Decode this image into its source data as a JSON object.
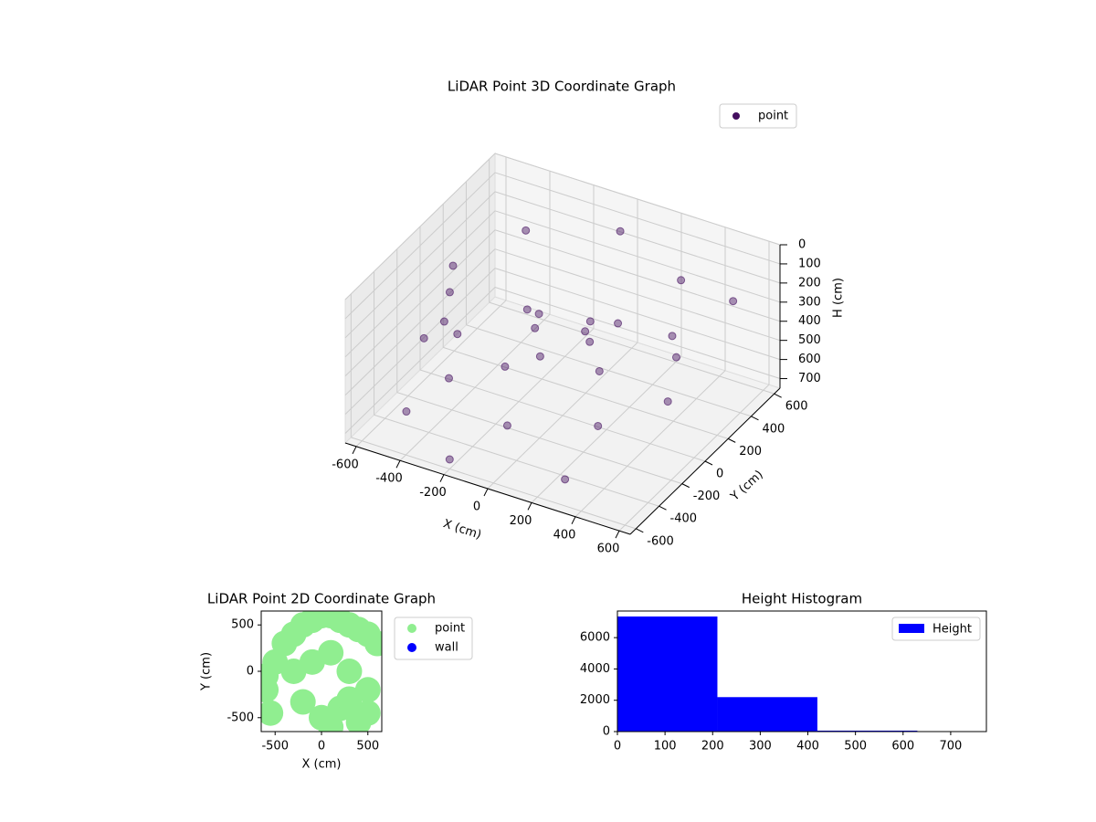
{
  "chart_data": [
    {
      "type": "scatter3d",
      "title": "LiDAR Point 3D Coordinate Graph",
      "xlabel": "X (cm)",
      "ylabel": "Y (cm)",
      "zlabel": "H (cm)",
      "xlim": [
        -650,
        650
      ],
      "ylim": [
        -650,
        650
      ],
      "zlim": [
        0,
        750
      ],
      "z_inverted": true,
      "xticks": [
        -600,
        -400,
        -200,
        0,
        200,
        400,
        600
      ],
      "yticks": [
        -600,
        -400,
        -200,
        0,
        200,
        400,
        600
      ],
      "zticks": [
        0,
        100,
        200,
        300,
        400,
        500,
        600,
        700
      ],
      "grid": true,
      "legend": "upper right",
      "series": [
        {
          "name": "point",
          "color": "#440f5f",
          "x": [
            500,
            354,
            0,
            -354,
            -500,
            -354,
            0,
            354,
            480,
            340,
            0,
            -340,
            -480,
            -340,
            0,
            340,
            100,
            -100,
            50,
            -50,
            150,
            -150,
            -620,
            -580,
            300,
            -200,
            620,
            -450
          ],
          "y": [
            0,
            354,
            500,
            354,
            0,
            -354,
            -500,
            -354,
            0,
            340,
            480,
            340,
            0,
            -340,
            -480,
            -340,
            50,
            -50,
            100,
            -100,
            -50,
            80,
            200,
            -100,
            -550,
            -600,
            300,
            -500
          ],
          "z": [
            150,
            120,
            80,
            120,
            150,
            180,
            200,
            180,
            500,
            520,
            550,
            520,
            500,
            480,
            520,
            480,
            250,
            300,
            350,
            400,
            280,
            320,
            450,
            500,
            650,
            700,
            100,
            600
          ]
        }
      ]
    },
    {
      "type": "scatter",
      "title": "LiDAR Point 2D Coordinate Graph",
      "xlabel": "X (cm)",
      "ylabel": "Y (cm)",
      "xlim": [
        -650,
        650
      ],
      "ylim": [
        -650,
        650
      ],
      "xticks": [
        -500,
        0,
        500
      ],
      "yticks": [
        -500,
        0,
        500
      ],
      "legend": "outside right",
      "series": [
        {
          "name": "point",
          "color": "#90ee90",
          "x": [
            -600,
            -500,
            -400,
            -300,
            -200,
            -100,
            0,
            100,
            200,
            300,
            400,
            500,
            600,
            -300,
            -100,
            100,
            300,
            500,
            0,
            100,
            200,
            300,
            400,
            500,
            -600,
            -550,
            -200
          ],
          "y": [
            -50,
            100,
            300,
            400,
            500,
            550,
            600,
            600,
            550,
            500,
            450,
            400,
            300,
            0,
            100,
            200,
            0,
            -200,
            -500,
            -600,
            -400,
            -300,
            -550,
            -450,
            -200,
            -450,
            -330
          ]
        },
        {
          "name": "wall",
          "color": "#0000ff",
          "x": [],
          "y": []
        }
      ]
    },
    {
      "type": "histogram",
      "title": "Height Histogram",
      "bins": [
        0,
        210,
        420,
        630
      ],
      "values": [
        7350,
        2200,
        60
      ],
      "xlim": [
        0,
        775
      ],
      "ylim": [
        0,
        7700
      ],
      "xticks": [
        0,
        100,
        200,
        300,
        400,
        500,
        600,
        700
      ],
      "yticks": [
        0,
        2000,
        4000,
        6000
      ],
      "legend": "upper right",
      "series_name": "Height",
      "color": "#0000ff"
    }
  ]
}
